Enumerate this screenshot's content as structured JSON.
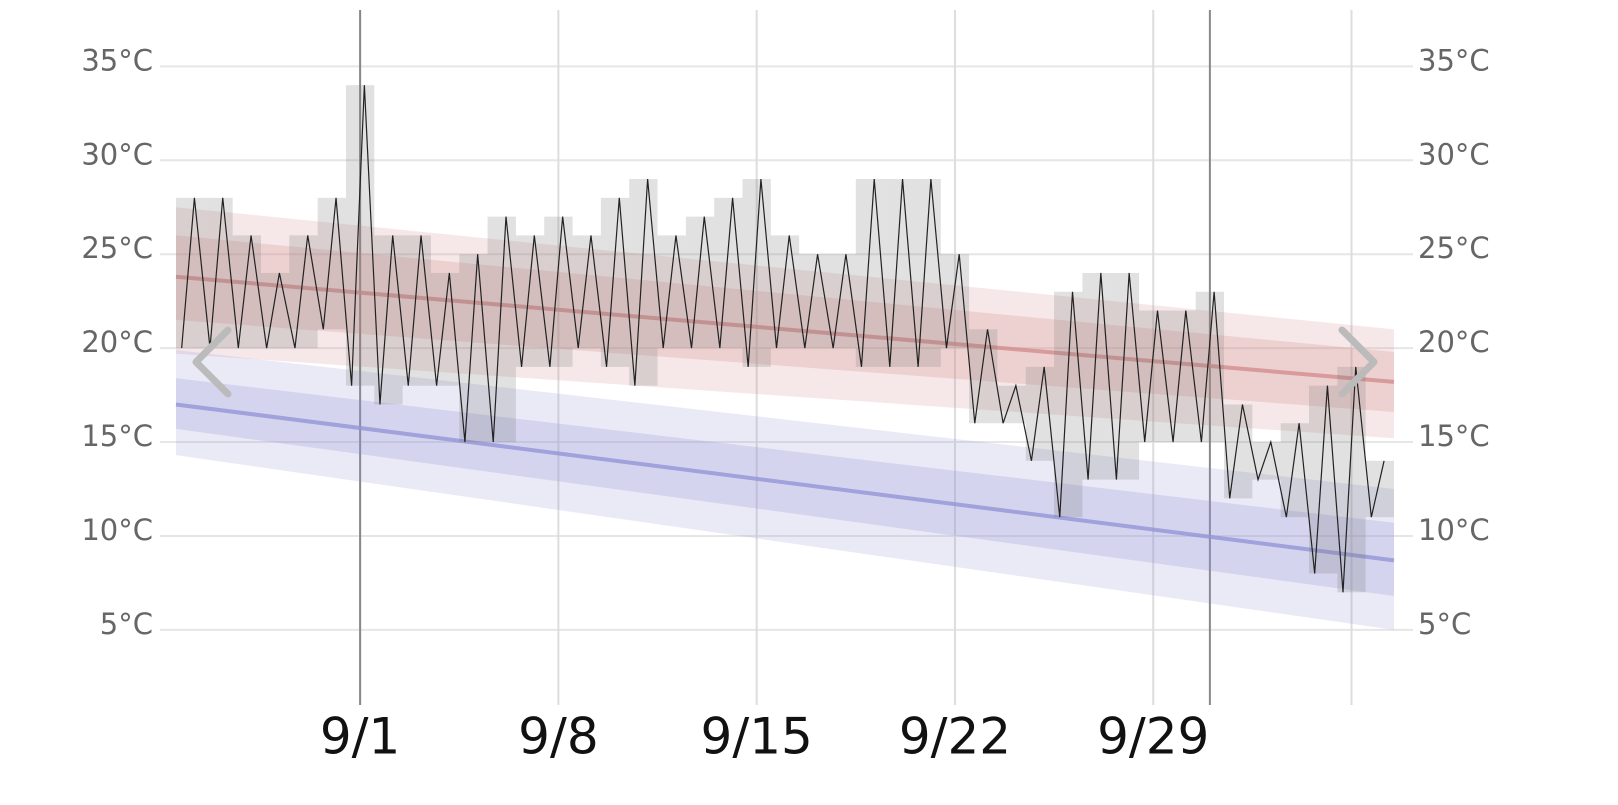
{
  "chart_data": {
    "type": "line",
    "xlim": [
      -6.5,
      36.5
    ],
    "xticks": [
      {
        "value": 0,
        "label": "9/1"
      },
      {
        "value": 7,
        "label": "9/8"
      },
      {
        "value": 14,
        "label": "9/15"
      },
      {
        "value": 21,
        "label": "9/22"
      },
      {
        "value": 28,
        "label": "9/29"
      },
      {
        "value": 35,
        "label": null
      }
    ],
    "month_boundaries": [
      0,
      30
    ],
    "ylim": [
      1,
      38
    ],
    "yticks": [
      {
        "value": 5,
        "label": "5°C"
      },
      {
        "value": 10,
        "label": "10°C"
      },
      {
        "value": 15,
        "label": "15°C"
      },
      {
        "value": 20,
        "label": "20°C"
      },
      {
        "value": 25,
        "label": "25°C"
      },
      {
        "value": 30,
        "label": "30°C"
      },
      {
        "value": 35,
        "label": "35°C"
      }
    ],
    "grid": true,
    "bands": [
      {
        "color": "#d28c8c",
        "x": [
          -6.5,
          36.5
        ],
        "p10": [
          19.7,
          15.2
        ],
        "p25": [
          21.5,
          16.6
        ],
        "mean": [
          23.8,
          18.2
        ],
        "p75": [
          26.0,
          19.8
        ],
        "p90": [
          27.5,
          21.0
        ]
      },
      {
        "color": "#9494d6",
        "x": [
          -6.5,
          36.5
        ],
        "p10": [
          14.3,
          5.0
        ],
        "p25": [
          15.7,
          6.8
        ],
        "mean": [
          17.0,
          8.7
        ],
        "p75": [
          18.4,
          10.7
        ],
        "p90": [
          19.9,
          12.5
        ]
      }
    ],
    "daily": {
      "color": "#222222",
      "x": [
        -6,
        -5,
        -4,
        -3,
        -2,
        -1,
        0,
        1,
        2,
        3,
        4,
        5,
        6,
        7,
        8,
        9,
        10,
        11,
        12,
        13,
        14,
        15,
        16,
        17,
        18,
        19,
        20,
        21,
        22,
        23,
        24,
        25,
        26,
        27,
        28,
        29,
        30,
        31,
        32,
        33,
        34,
        35,
        36
      ],
      "high": [
        28,
        28,
        26,
        24,
        26,
        28,
        34,
        26,
        26,
        24,
        25,
        27,
        26,
        27,
        26,
        28,
        29,
        26,
        27,
        28,
        29,
        26,
        25,
        25,
        29,
        29,
        29,
        25,
        21,
        18,
        19,
        23,
        24,
        24,
        22,
        22,
        23,
        17,
        15,
        16,
        18,
        19,
        14
      ],
      "low": [
        20,
        20,
        20,
        20,
        20,
        21,
        18,
        17,
        18,
        18,
        15,
        15,
        19,
        19,
        20,
        19,
        18,
        20,
        20,
        20,
        19,
        20,
        20,
        20,
        19,
        19,
        19,
        20,
        16,
        16,
        14,
        11,
        13,
        13,
        15,
        15,
        15,
        12,
        13,
        11,
        8,
        7,
        11
      ]
    }
  }
}
